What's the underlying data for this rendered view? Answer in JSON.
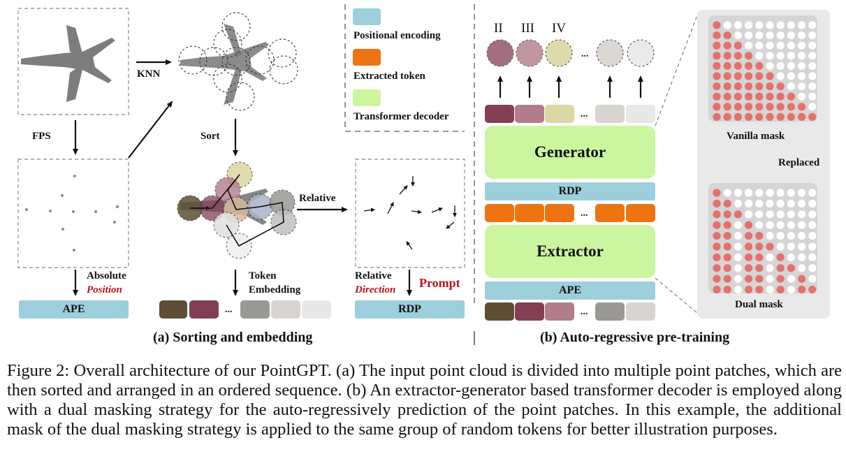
{
  "panel_a": {
    "fps_label": "FPS",
    "knn_label": "KNN",
    "sort_label": "Sort",
    "relative_label": "Relative",
    "absolute_label": "Absolute",
    "position_label": "Position",
    "token_label": "Token",
    "embedding_label": "Embedding",
    "relative2_label": "Relative",
    "direction_label": "Direction",
    "prompt_label": "Prompt",
    "ape_label": "APE",
    "rdp_label": "RDP",
    "dots": "...",
    "title": "(a) Sorting and embedding"
  },
  "legend": {
    "positional": "Positional encoding",
    "extracted": "Extracted token",
    "decoder": "Transformer decoder"
  },
  "panel_b": {
    "numerals": [
      "II",
      "III",
      "IV"
    ],
    "generator_label": "Generator",
    "extractor_label": "Extractor",
    "rdp_label": "RDP",
    "ape_label": "APE",
    "dots": "...",
    "title": "(b) Auto-regressive pre-training"
  },
  "mask": {
    "vanilla_label": "Vanilla mask",
    "replaced_label": "Replaced",
    "dual_label": "Dual mask"
  },
  "colors": {
    "dark_olive": "#5d4e34",
    "plum": "#823f53",
    "mauve": "#b27c8a",
    "khaki": "#dcd7a2",
    "gray": "#9a9893",
    "light": "#d8d4cf",
    "lighter": "#e8e8e8",
    "orange": "#ee7412",
    "cyan": "#9ccfdb",
    "green": "#ccf5a0",
    "salmon": "#e4716b"
  },
  "caption": {
    "text": "Figure 2:  Overall architecture of our PointGPT. (a) The input point cloud is divided into multiple point patches, which are then sorted and arranged in an ordered sequence. (b) An extractor-generator based transformer decoder is employed along with a dual masking strategy for the auto-regressively prediction of the point patches. In this example, the additional mask of the dual masking strategy is applied to the same group of random tokens for better illustration purposes."
  }
}
